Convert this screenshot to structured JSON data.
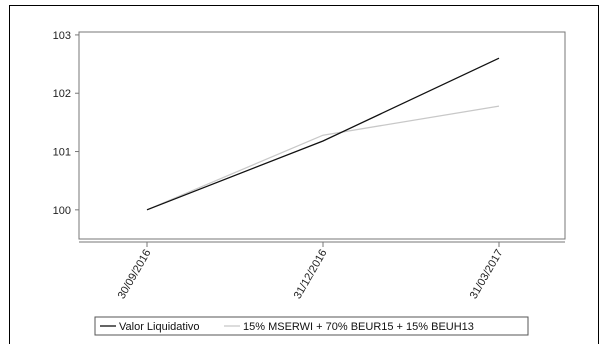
{
  "chart_data": {
    "type": "line",
    "x": [
      "30/09/2016",
      "31/12/2016",
      "31/03/2017"
    ],
    "series": [
      {
        "name": "Valor Liquidativo",
        "values": [
          100.0,
          101.18,
          102.6
        ],
        "color": "#111111"
      },
      {
        "name": "15% MSERWI + 70% BEUR15 + 15% BEUH13",
        "values": [
          100.0,
          101.28,
          101.78
        ],
        "color": "#c8c8c8"
      }
    ],
    "yticks": [
      100,
      101,
      102,
      103
    ],
    "ylim": [
      99.5,
      103.05
    ],
    "grid": false,
    "legend": "bottom"
  }
}
